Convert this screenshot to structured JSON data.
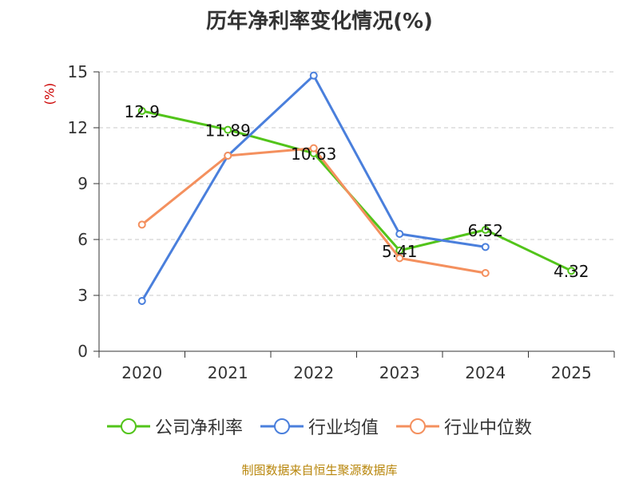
{
  "chart_data": {
    "type": "line",
    "title": "历年净利率变化情况(%)",
    "ylabel": "(%)",
    "xlabel": "",
    "categories": [
      "2020",
      "2021",
      "2022",
      "2023",
      "2024",
      "2025"
    ],
    "ylim": [
      0,
      15
    ],
    "yticks": [
      0,
      3,
      6,
      9,
      12,
      15
    ],
    "grid": true,
    "legend_position": "bottom",
    "series": [
      {
        "name": "公司净利率",
        "color": "#52c41a",
        "values": [
          12.9,
          11.89,
          10.63,
          5.41,
          6.52,
          4.32
        ],
        "labels": [
          "12.9",
          "11.89",
          "10.63",
          "5.41",
          "6.52",
          "4.32"
        ]
      },
      {
        "name": "行业均值",
        "color": "#4a7fdc",
        "values": [
          2.7,
          10.5,
          14.8,
          6.3,
          5.6,
          null
        ]
      },
      {
        "name": "行业中位数",
        "color": "#f4905e",
        "values": [
          6.8,
          10.5,
          10.9,
          5.0,
          4.2,
          null
        ]
      }
    ]
  },
  "source": "制图数据来自恒生聚源数据库"
}
